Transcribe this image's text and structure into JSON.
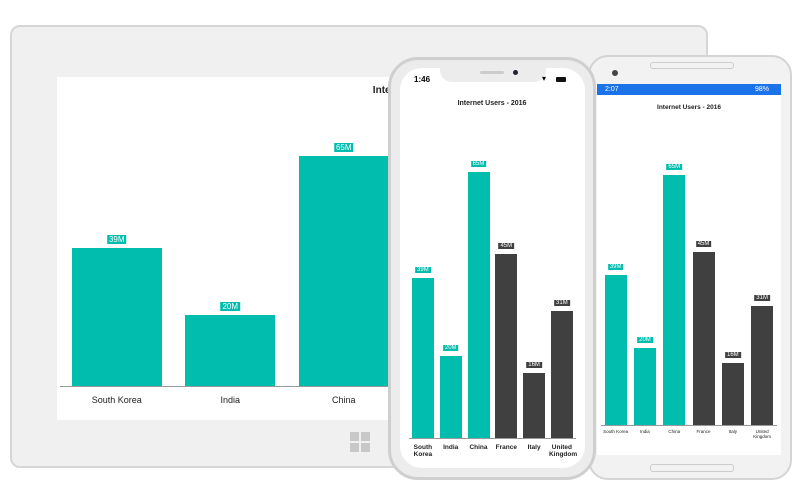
{
  "devices": {
    "iphone": {
      "time": "1:46"
    },
    "android": {
      "time": "2:07",
      "battery": "98%"
    }
  },
  "chart_data": {
    "type": "bar",
    "title": "Internet Users - 2016",
    "categories": [
      "South Korea",
      "India",
      "China",
      "France",
      "Italy",
      "United Kingdom"
    ],
    "values": [
      39,
      20,
      65,
      45,
      16,
      31
    ],
    "data_labels": [
      "39M",
      "20M",
      "65M",
      "45M",
      "16M",
      "31M"
    ],
    "colors": [
      "#00bdae",
      "#00bdae",
      "#00bdae",
      "#404041",
      "#404041",
      "#404041"
    ],
    "ylim": [
      0,
      65
    ],
    "grid": false,
    "legend": "none"
  }
}
